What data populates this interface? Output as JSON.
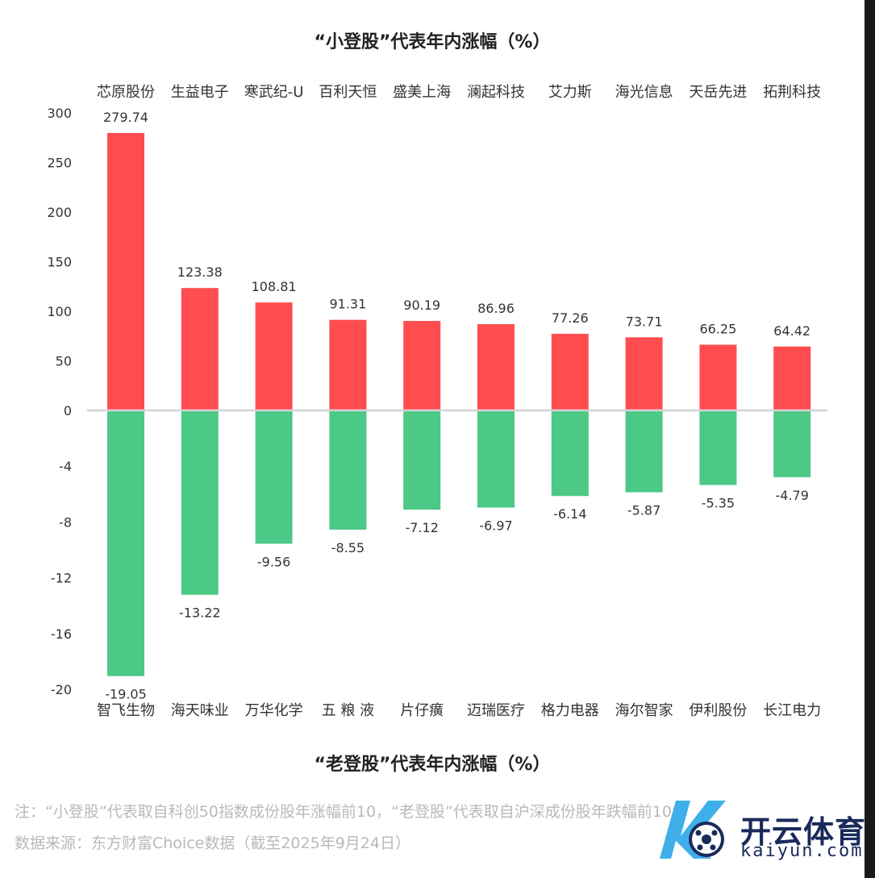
{
  "titles": {
    "top": "“小登股”代表年内涨幅（%）",
    "bottom": "“老登股”代表年内涨幅（%）"
  },
  "notes": {
    "line1": "注：“小登股”代表取自科创50指数成份股年涨幅前10，“老登股”代表取自沪深成份股年跌幅前10",
    "line2": "数据来源：东方财富Choice数据（截至2025年9月24日）"
  },
  "watermark": {
    "text_cn": "开云体育",
    "text_en": "kaiyun.com"
  },
  "colors": {
    "positive": "#ff4d4f",
    "negative": "#4cc887",
    "baseline": "#d4d4d4",
    "text": "#333333"
  },
  "chart_data": [
    {
      "type": "bar",
      "title": "“小登股”代表年内涨幅（%）",
      "categories": [
        "芯原股份",
        "生益电子",
        "寒武纪-U",
        "百利天恒",
        "盛美上海",
        "澜起科技",
        "艾力斯",
        "海光信息",
        "天岳先进",
        "拓荆科技"
      ],
      "values": [
        279.74,
        123.38,
        108.81,
        91.31,
        90.19,
        86.96,
        77.26,
        73.71,
        66.25,
        64.42
      ],
      "ylim": [
        0,
        300
      ],
      "yticks": [
        0,
        50,
        100,
        150,
        200,
        250,
        300
      ],
      "category_position": "top"
    },
    {
      "type": "bar",
      "title": "“老登股”代表年内涨幅（%）",
      "categories": [
        "智飞生物",
        "海天味业",
        "万华化学",
        "五 粮 液",
        "片仔癀",
        "迈瑞医疗",
        "格力电器",
        "海尔智家",
        "伊利股份",
        "长江电力"
      ],
      "values": [
        -19.05,
        -13.22,
        -9.56,
        -8.55,
        -7.12,
        -6.97,
        -6.14,
        -5.87,
        -5.35,
        -4.79
      ],
      "ylim": [
        -20,
        0
      ],
      "yticks": [
        -4,
        -8,
        -12,
        -16,
        -20
      ],
      "category_position": "bottom"
    }
  ]
}
